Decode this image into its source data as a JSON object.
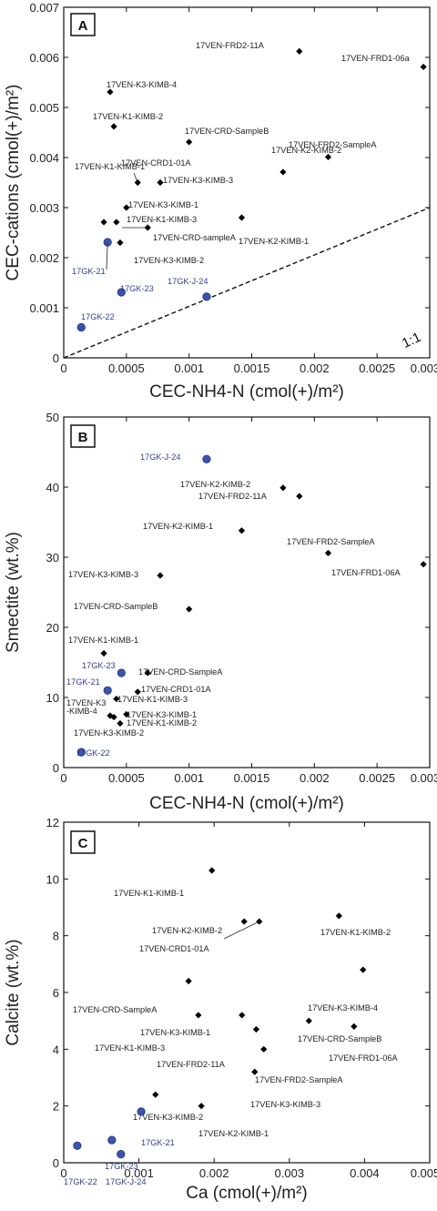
{
  "chart_data": [
    {
      "type": "scatter",
      "panel_letter": "A",
      "xlabel": "CEC-NH4-N (cmol(+)/m²)",
      "ylabel": "CEC-cations (cmol(+)/m²)",
      "xlim": [
        0,
        0.003
      ],
      "ylim": [
        0,
        0.007
      ],
      "xtick_labels": [
        "0",
        "0.0005",
        "0.001",
        "0.0015",
        "0.002",
        "0.0025",
        "0.003"
      ],
      "ytick_labels": [
        "0",
        "0.001",
        "0.002",
        "0.003",
        "0.004",
        "0.005",
        "0.006",
        "0.007"
      ],
      "reference_line": {
        "label": "1:1",
        "from": [
          0,
          0
        ],
        "to": [
          0.003,
          0.003
        ]
      },
      "series": [
        {
          "color": "#000000",
          "marker": "diamond",
          "points": [
            {
              "label": "17VEN-FRD2-11A",
              "x": 0.00188,
              "y": 0.00612
            },
            {
              "label": "17VEN-FRD1-06a",
              "x": 0.00287,
              "y": 0.00581
            },
            {
              "label": "17VEN-K3-KIMB-4",
              "x": 0.00037,
              "y": 0.00531
            },
            {
              "label": "17VEN-K1-KIMB-2",
              "x": 0.0004,
              "y": 0.00462
            },
            {
              "label": "17VEN-CRD-SampleB",
              "x": 0.001,
              "y": 0.00431
            },
            {
              "label": "17VEN-FRD2-SampleA",
              "x": 0.00211,
              "y": 0.00401
            },
            {
              "label": "17VEN-K2-KIMB-2",
              "x": 0.00175,
              "y": 0.00371
            },
            {
              "label": "17VEN-CRD1-01A",
              "x": 0.00059,
              "y": 0.0035
            },
            {
              "label": "17VEN-K3-KIMB-3",
              "x": 0.00077,
              "y": 0.0035
            },
            {
              "label": "17VEN-K1-KIMB-1",
              "x": 0.00032,
              "y": 0.00271
            },
            {
              "label": "17VEN-K3-KIMB-1",
              "x": 0.0005,
              "y": 0.003
            },
            {
              "label": "17VEN-K1-KIMB-3",
              "x": 0.00042,
              "y": 0.00271
            },
            {
              "label": "17VEN-K2-KIMB-1",
              "x": 0.00142,
              "y": 0.0028
            },
            {
              "label": "17VEN-CRD-sampleA",
              "x": 0.00067,
              "y": 0.0026
            },
            {
              "label": "17VEN-K3-KIMB-2",
              "x": 0.00045,
              "y": 0.0023
            }
          ]
        },
        {
          "color": "#2b3f9e",
          "marker": "circle",
          "points": [
            {
              "label": "17GK-21",
              "x": 0.00035,
              "y": 0.00231
            },
            {
              "label": "17GK-23",
              "x": 0.00046,
              "y": 0.00131
            },
            {
              "label": "17GK-J-24",
              "x": 0.00114,
              "y": 0.00122
            },
            {
              "label": "17GK-22",
              "x": 0.00014,
              "y": 0.00061
            }
          ]
        }
      ]
    },
    {
      "type": "scatter",
      "panel_letter": "B",
      "xlabel": "CEC-NH4-N (cmol(+)/m²)",
      "ylabel": "Smectite (wt.%)",
      "xlim": [
        0,
        0.003
      ],
      "ylim": [
        0,
        50
      ],
      "xtick_labels": [
        "0",
        "0.0005",
        "0.001",
        "0.0015",
        "0.002",
        "0.0025",
        "0.003"
      ],
      "ytick_labels": [
        "0",
        "10",
        "20",
        "30",
        "40",
        "50"
      ],
      "series": [
        {
          "color": "#000000",
          "marker": "diamond",
          "points": [
            {
              "label": "17VEN-K2-KIMB-2",
              "x": 0.00175,
              "y": 39.9
            },
            {
              "label": "17VEN-FRD2-11A",
              "x": 0.00188,
              "y": 38.7
            },
            {
              "label": "17VEN-K2-KIMB-1",
              "x": 0.00142,
              "y": 33.8
            },
            {
              "label": "17VEN-FRD2-SampleA",
              "x": 0.00211,
              "y": 30.6
            },
            {
              "label": "17VEN-FRD1-06A",
              "x": 0.00287,
              "y": 29.0
            },
            {
              "label": "17VEN-K3-KIMB-3",
              "x": 0.00077,
              "y": 27.4
            },
            {
              "label": "17VEN-CRD-SampleB",
              "x": 0.001,
              "y": 22.6
            },
            {
              "label": "17VEN-K1-KIMB-1",
              "x": 0.00032,
              "y": 16.3
            },
            {
              "label": "17VEN-CRD-SampleA",
              "x": 0.00067,
              "y": 13.5
            },
            {
              "label": "17VEN-CRD1-01A",
              "x": 0.00059,
              "y": 10.8
            },
            {
              "label": "17VEN-K1-KIMB-3",
              "x": 0.00042,
              "y": 9.8
            },
            {
              "label": "17VEN-K3-KIMB-4",
              "x": 0.00037,
              "y": 7.4
            },
            {
              "label": "17VEN-K3-KIMB-1",
              "x": 0.0005,
              "y": 7.6
            },
            {
              "label": "17VEN-K1-KIMB-2",
              "x": 0.0004,
              "y": 7.2
            },
            {
              "label": "17VEN-K3-KIMB-2",
              "x": 0.00045,
              "y": 6.3
            }
          ]
        },
        {
          "color": "#2b3f9e",
          "marker": "circle",
          "points": [
            {
              "label": "17GK-J-24",
              "x": 0.00114,
              "y": 44.0
            },
            {
              "label": "17GK-23",
              "x": 0.00046,
              "y": 13.5
            },
            {
              "label": "17GK-21",
              "x": 0.00035,
              "y": 11.0
            },
            {
              "label": "17GK-22",
              "x": 0.00014,
              "y": 2.2
            }
          ]
        }
      ]
    },
    {
      "type": "scatter",
      "panel_letter": "C",
      "xlabel": "Ca (cmol(+)/m²)",
      "ylabel": "Calcite (wt.%)",
      "xlim": [
        0,
        0.005
      ],
      "ylim": [
        0,
        12
      ],
      "xtick_labels": [
        "0",
        "0.001",
        "0.002",
        "0.003",
        "0.004",
        "0.005"
      ],
      "ytick_labels": [
        "0",
        "2",
        "4",
        "6",
        "8",
        "10",
        "12"
      ],
      "series": [
        {
          "color": "#000000",
          "marker": "diamond",
          "points": [
            {
              "label": "17VEN-K1-KIMB-1",
              "x": 0.00197,
              "y": 10.3
            },
            {
              "label": "17VEN-K2-KIMB-2",
              "x": 0.0026,
              "y": 8.5
            },
            {
              "label": "17VEN-CRD1-01A",
              "x": 0.0024,
              "y": 8.5
            },
            {
              "label": "17VEN-K1-KIMB-2",
              "x": 0.00366,
              "y": 8.7
            },
            {
              "label": "17VEN-K3-KIMB-4",
              "x": 0.00398,
              "y": 6.8
            },
            {
              "label": "17VEN-CRD-SampleA",
              "x": 0.00166,
              "y": 6.4
            },
            {
              "label": "17VEN-K3-KIMB-1",
              "x": 0.00237,
              "y": 5.2
            },
            {
              "label": "17VEN-K1-KIMB-3",
              "x": 0.00179,
              "y": 5.2
            },
            {
              "label": "17VEN-CRD-SampleB",
              "x": 0.00326,
              "y": 5.0
            },
            {
              "label": "17VEN-FRD1-06A",
              "x": 0.00386,
              "y": 4.8
            },
            {
              "label": "17VEN-FRD2-11A",
              "x": 0.00256,
              "y": 4.7
            },
            {
              "label": "17VEN-FRD2-SampleA",
              "x": 0.00266,
              "y": 4.0
            },
            {
              "label": "17VEN-K3-KIMB-3",
              "x": 0.00254,
              "y": 3.2
            },
            {
              "label": "17VEN-K3-KIMB-2",
              "x": 0.00122,
              "y": 2.4
            },
            {
              "label": "17VEN-K2-KIMB-1",
              "x": 0.00183,
              "y": 2.0
            }
          ]
        },
        {
          "color": "#2b3f9e",
          "marker": "circle",
          "points": [
            {
              "label": "17GK-21",
              "x": 0.00103,
              "y": 1.8
            },
            {
              "label": "17GK-23",
              "x": 0.00064,
              "y": 0.8
            },
            {
              "label": "17GK-22",
              "x": 0.00018,
              "y": 0.6
            },
            {
              "label": "17GK-J-24",
              "x": 0.00076,
              "y": 0.3
            }
          ]
        }
      ]
    }
  ]
}
